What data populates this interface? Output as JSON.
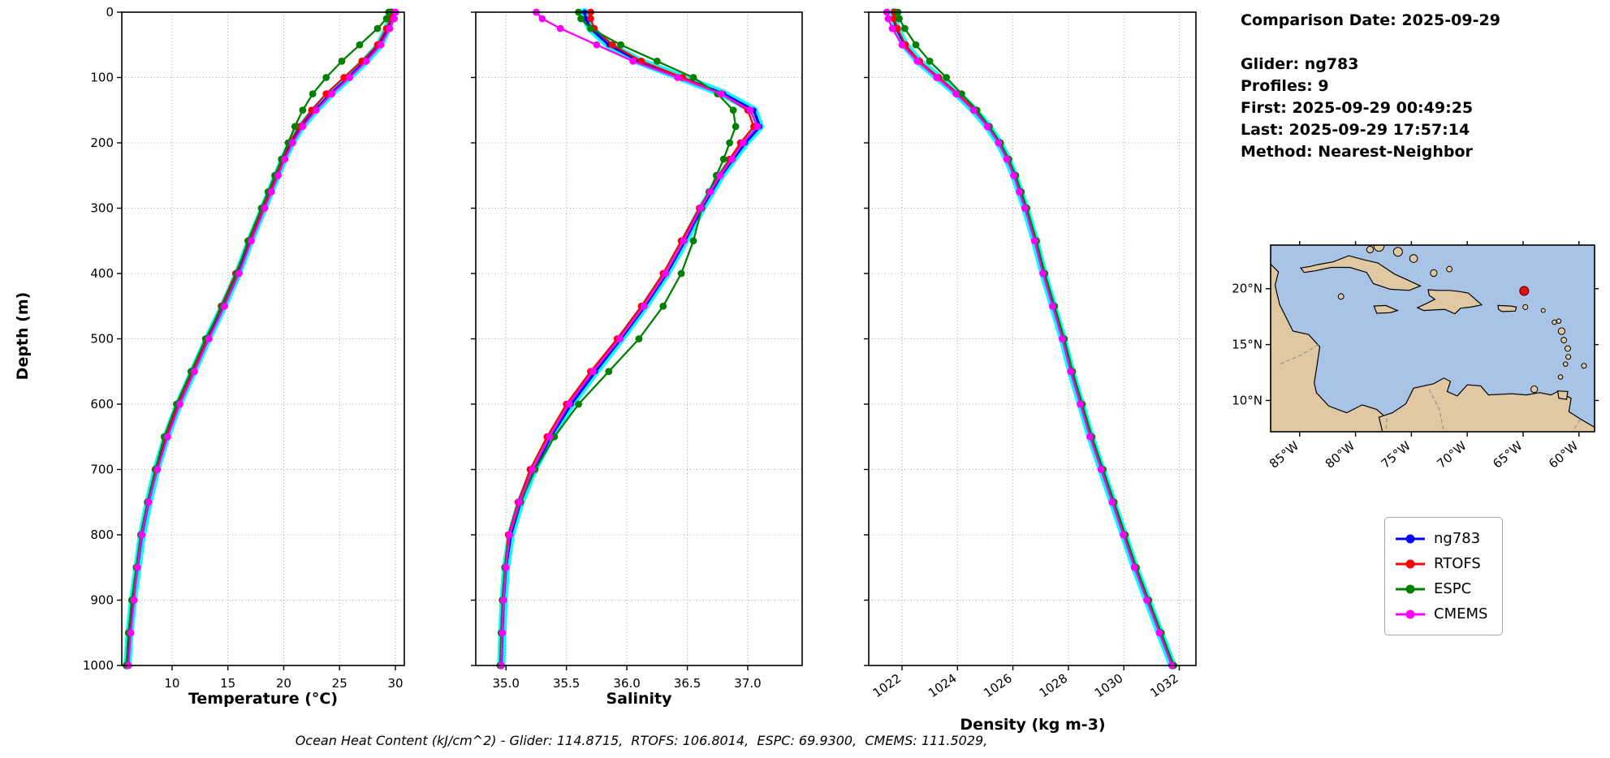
{
  "info_panel": {
    "lines": [
      "Comparison Date: 2025-09-29",
      "Glider: ng783",
      "Profiles: 9",
      "First: 2025-09-29 00:49:25",
      "Last: 2025-09-29 17:57:14",
      "Method: Nearest-Neighbor"
    ]
  },
  "legend": {
    "entries": [
      {
        "label": "ng783",
        "color": "#0000ff"
      },
      {
        "label": "RTOFS",
        "color": "#ff0000"
      },
      {
        "label": "ESPC",
        "color": "#008000"
      },
      {
        "label": "CMEMS",
        "color": "#ff00ff"
      }
    ]
  },
  "caption": "Ocean Heat Content (kJ/cm^2) - Glider: 114.8715,  RTOFS: 106.8014,  ESPC: 69.9300,  CMEMS: 111.5029,",
  "chart_data": [
    {
      "name": "temperature-profile",
      "type": "line",
      "xlabel": "Temperature (°C)",
      "ylabel": "Depth (m)",
      "xlim": [
        5.5,
        30.8
      ],
      "ylim": [
        0,
        1000
      ],
      "grid": true,
      "xticks": {
        "values": [
          10,
          15,
          20,
          25,
          30
        ],
        "labels": [
          "10",
          "15",
          "20",
          "25",
          "30"
        ]
      },
      "yticks": {
        "values": [
          0,
          100,
          200,
          300,
          400,
          500,
          600,
          700,
          800,
          900,
          1000
        ],
        "labels": [
          "0",
          "100",
          "200",
          "300",
          "400",
          "500",
          "600",
          "700",
          "800",
          "900",
          "1000"
        ]
      },
      "depths": [
        0,
        10,
        25,
        50,
        75,
        100,
        125,
        150,
        175,
        200,
        225,
        250,
        275,
        300,
        350,
        400,
        450,
        500,
        550,
        600,
        650,
        700,
        750,
        800,
        850,
        900,
        950,
        1000
      ],
      "series": [
        {
          "name": "ng783",
          "color": "#0000ff",
          "halo_color": "#00ffff",
          "line_width": 3.2,
          "marker_radius": 3.2,
          "values": [
            29.6,
            29.6,
            29.3,
            28.6,
            27.3,
            25.8,
            24.2,
            22.8,
            21.6,
            20.7,
            20.0,
            19.4,
            18.8,
            18.2,
            17.0,
            15.9,
            14.6,
            13.2,
            11.9,
            10.6,
            9.5,
            8.6,
            7.9,
            7.3,
            6.9,
            6.5,
            6.2,
            6.0
          ]
        },
        {
          "name": "RTOFS",
          "color": "#ff0000",
          "line_width": 2.3,
          "marker_radius": 4.4,
          "values": [
            29.7,
            29.6,
            29.2,
            28.4,
            27.0,
            25.4,
            23.8,
            22.5,
            21.4,
            20.5,
            19.9,
            19.3,
            18.7,
            18.1,
            16.9,
            15.7,
            14.4,
            13.1,
            11.8,
            10.5,
            9.4,
            8.5,
            7.8,
            7.2,
            6.8,
            6.4,
            6.1,
            5.9
          ]
        },
        {
          "name": "ESPC",
          "color": "#008000",
          "line_width": 2.3,
          "marker_radius": 4.4,
          "values": [
            29.4,
            29.2,
            28.4,
            26.8,
            25.2,
            23.8,
            22.6,
            21.7,
            21.0,
            20.4,
            19.8,
            19.2,
            18.6,
            18.0,
            16.8,
            15.8,
            14.5,
            13.0,
            11.7,
            10.4,
            9.3,
            8.5,
            7.8,
            7.2,
            6.8,
            6.4,
            6.1,
            5.9
          ]
        },
        {
          "name": "CMEMS",
          "color": "#ff00ff",
          "line_width": 2.3,
          "marker_radius": 4.4,
          "values": [
            30.0,
            29.9,
            29.5,
            28.7,
            27.4,
            25.9,
            24.3,
            22.9,
            21.7,
            20.8,
            20.1,
            19.5,
            18.9,
            18.3,
            17.1,
            16.0,
            14.7,
            13.3,
            12.0,
            10.7,
            9.6,
            8.7,
            7.9,
            7.3,
            6.9,
            6.6,
            6.3,
            6.1
          ]
        }
      ]
    },
    {
      "name": "salinity-profile",
      "type": "line",
      "xlabel": "Salinity",
      "ylabel": "Depth (m)",
      "xlim": [
        34.75,
        37.45
      ],
      "ylim": [
        0,
        1000
      ],
      "grid": true,
      "xticks": {
        "values": [
          35.0,
          35.5,
          36.0,
          36.5,
          37.0
        ],
        "labels": [
          "35.0",
          "35.5",
          "36.0",
          "36.5",
          "37.0"
        ]
      },
      "yticks": {
        "values": [
          0,
          100,
          200,
          300,
          400,
          500,
          600,
          700,
          800,
          900,
          1000
        ],
        "labels": [
          "0",
          "100",
          "200",
          "300",
          "400",
          "500",
          "600",
          "700",
          "800",
          "900",
          "1000"
        ]
      },
      "depths": [
        0,
        10,
        25,
        50,
        75,
        100,
        125,
        150,
        175,
        200,
        225,
        250,
        275,
        300,
        350,
        400,
        450,
        500,
        550,
        600,
        650,
        700,
        750,
        800,
        850,
        900,
        950,
        1000
      ],
      "series": [
        {
          "name": "ng783",
          "color": "#0000ff",
          "halo_color": "#00ffff",
          "line_width": 3.2,
          "marker_radius": 3.2,
          "values": [
            35.65,
            35.66,
            35.7,
            35.85,
            36.1,
            36.45,
            36.8,
            37.05,
            37.1,
            36.98,
            36.88,
            36.78,
            36.7,
            36.62,
            36.48,
            36.33,
            36.15,
            35.95,
            35.74,
            35.54,
            35.37,
            35.23,
            35.12,
            35.04,
            35.0,
            34.98,
            34.97,
            34.96
          ]
        },
        {
          "name": "RTOFS",
          "color": "#ff0000",
          "line_width": 2.3,
          "marker_radius": 4.4,
          "values": [
            35.7,
            35.7,
            35.73,
            35.88,
            36.12,
            36.46,
            36.78,
            37.0,
            37.05,
            36.94,
            36.85,
            36.76,
            36.68,
            36.6,
            36.45,
            36.3,
            36.12,
            35.92,
            35.7,
            35.5,
            35.34,
            35.2,
            35.1,
            35.02,
            34.99,
            34.97,
            34.96,
            34.96
          ]
        },
        {
          "name": "ESPC",
          "color": "#008000",
          "line_width": 2.3,
          "marker_radius": 4.4,
          "values": [
            35.6,
            35.62,
            35.7,
            35.95,
            36.25,
            36.55,
            36.75,
            36.88,
            36.9,
            36.85,
            36.8,
            36.74,
            36.68,
            36.62,
            36.55,
            36.45,
            36.3,
            36.1,
            35.85,
            35.6,
            35.4,
            35.24,
            35.12,
            35.03,
            34.99,
            34.97,
            34.96,
            34.95
          ]
        },
        {
          "name": "CMEMS",
          "color": "#ff00ff",
          "line_width": 2.3,
          "marker_radius": 4.4,
          "values": [
            35.25,
            35.3,
            35.45,
            35.75,
            36.05,
            36.42,
            36.78,
            37.02,
            37.08,
            36.96,
            36.87,
            36.77,
            36.69,
            36.61,
            36.47,
            36.32,
            36.14,
            35.94,
            35.72,
            35.52,
            35.36,
            35.22,
            35.11,
            35.03,
            35.0,
            34.98,
            34.97,
            34.96
          ]
        }
      ]
    },
    {
      "name": "density-profile",
      "type": "line",
      "xlabel": "Density (kg m-3)",
      "ylabel": "Depth (m)",
      "xlim": [
        1020.8,
        1032.6
      ],
      "ylim": [
        0,
        1000
      ],
      "grid": true,
      "xtick_rotation": 35,
      "xticks": {
        "values": [
          1022,
          1024,
          1026,
          1028,
          1030,
          1032
        ],
        "labels": [
          "1022",
          "1024",
          "1026",
          "1028",
          "1030",
          "1032"
        ]
      },
      "yticks": {
        "values": [
          0,
          100,
          200,
          300,
          400,
          500,
          600,
          700,
          800,
          900,
          1000
        ],
        "labels": [
          "0",
          "100",
          "200",
          "300",
          "400",
          "500",
          "600",
          "700",
          "800",
          "900",
          "1000"
        ]
      },
      "depths": [
        0,
        10,
        25,
        50,
        75,
        100,
        125,
        150,
        175,
        200,
        225,
        250,
        275,
        300,
        350,
        400,
        450,
        500,
        550,
        600,
        650,
        700,
        750,
        800,
        850,
        900,
        950,
        1000
      ],
      "series": [
        {
          "name": "ng783",
          "color": "#0000ff",
          "halo_color": "#00ffff",
          "line_width": 3.2,
          "marker_radius": 3.2,
          "values": [
            1021.7,
            1021.7,
            1021.8,
            1022.1,
            1022.6,
            1023.3,
            1024.0,
            1024.6,
            1025.1,
            1025.5,
            1025.8,
            1026.05,
            1026.25,
            1026.45,
            1026.8,
            1027.1,
            1027.45,
            1027.8,
            1028.1,
            1028.45,
            1028.8,
            1029.2,
            1029.6,
            1030.0,
            1030.4,
            1030.85,
            1031.3,
            1031.75
          ]
        },
        {
          "name": "RTOFS",
          "color": "#ff0000",
          "line_width": 2.3,
          "marker_radius": 4.4,
          "values": [
            1021.72,
            1021.72,
            1021.83,
            1022.12,
            1022.63,
            1023.32,
            1024.02,
            1024.62,
            1025.12,
            1025.52,
            1025.82,
            1026.07,
            1026.27,
            1026.47,
            1026.82,
            1027.12,
            1027.47,
            1027.82,
            1028.12,
            1028.47,
            1028.82,
            1029.22,
            1029.62,
            1030.02,
            1030.42,
            1030.87,
            1031.32,
            1031.77
          ]
        },
        {
          "name": "ESPC",
          "color": "#008000",
          "line_width": 2.3,
          "marker_radius": 4.4,
          "values": [
            1021.85,
            1021.9,
            1022.1,
            1022.5,
            1023.0,
            1023.6,
            1024.15,
            1024.7,
            1025.15,
            1025.55,
            1025.85,
            1026.1,
            1026.3,
            1026.5,
            1026.85,
            1027.15,
            1027.5,
            1027.85,
            1028.15,
            1028.5,
            1028.85,
            1029.25,
            1029.65,
            1030.05,
            1030.45,
            1030.9,
            1031.35,
            1031.8
          ]
        },
        {
          "name": "CMEMS",
          "color": "#ff00ff",
          "line_width": 2.3,
          "marker_radius": 4.4,
          "values": [
            1021.45,
            1021.5,
            1021.65,
            1022.0,
            1022.55,
            1023.25,
            1023.95,
            1024.58,
            1025.08,
            1025.48,
            1025.78,
            1026.03,
            1026.23,
            1026.43,
            1026.78,
            1027.08,
            1027.43,
            1027.78,
            1028.08,
            1028.43,
            1028.78,
            1029.18,
            1029.58,
            1029.98,
            1030.38,
            1030.83,
            1031.28,
            1031.73
          ]
        }
      ]
    }
  ],
  "map": {
    "extent_lon": [
      -87.6,
      -58.6
    ],
    "extent_lat": [
      7.2,
      23.9
    ],
    "lon_ticks": {
      "values": [
        -85,
        -80,
        -75,
        -70,
        -65,
        -60
      ],
      "labels": [
        "85°W",
        "80°W",
        "75°W",
        "70°W",
        "65°W",
        "60°W"
      ]
    },
    "lat_ticks": {
      "values": [
        20,
        15,
        10
      ],
      "labels": [
        "20°N",
        "15°N",
        "10°N"
      ]
    },
    "ocean_color": "#a9c3e6",
    "land_color": "#e0c9a2",
    "coast_color": "#000000",
    "border_color": "#8a8a8a",
    "marker": {
      "lon": -64.9,
      "lat": 19.8,
      "color": "#e01010"
    }
  }
}
